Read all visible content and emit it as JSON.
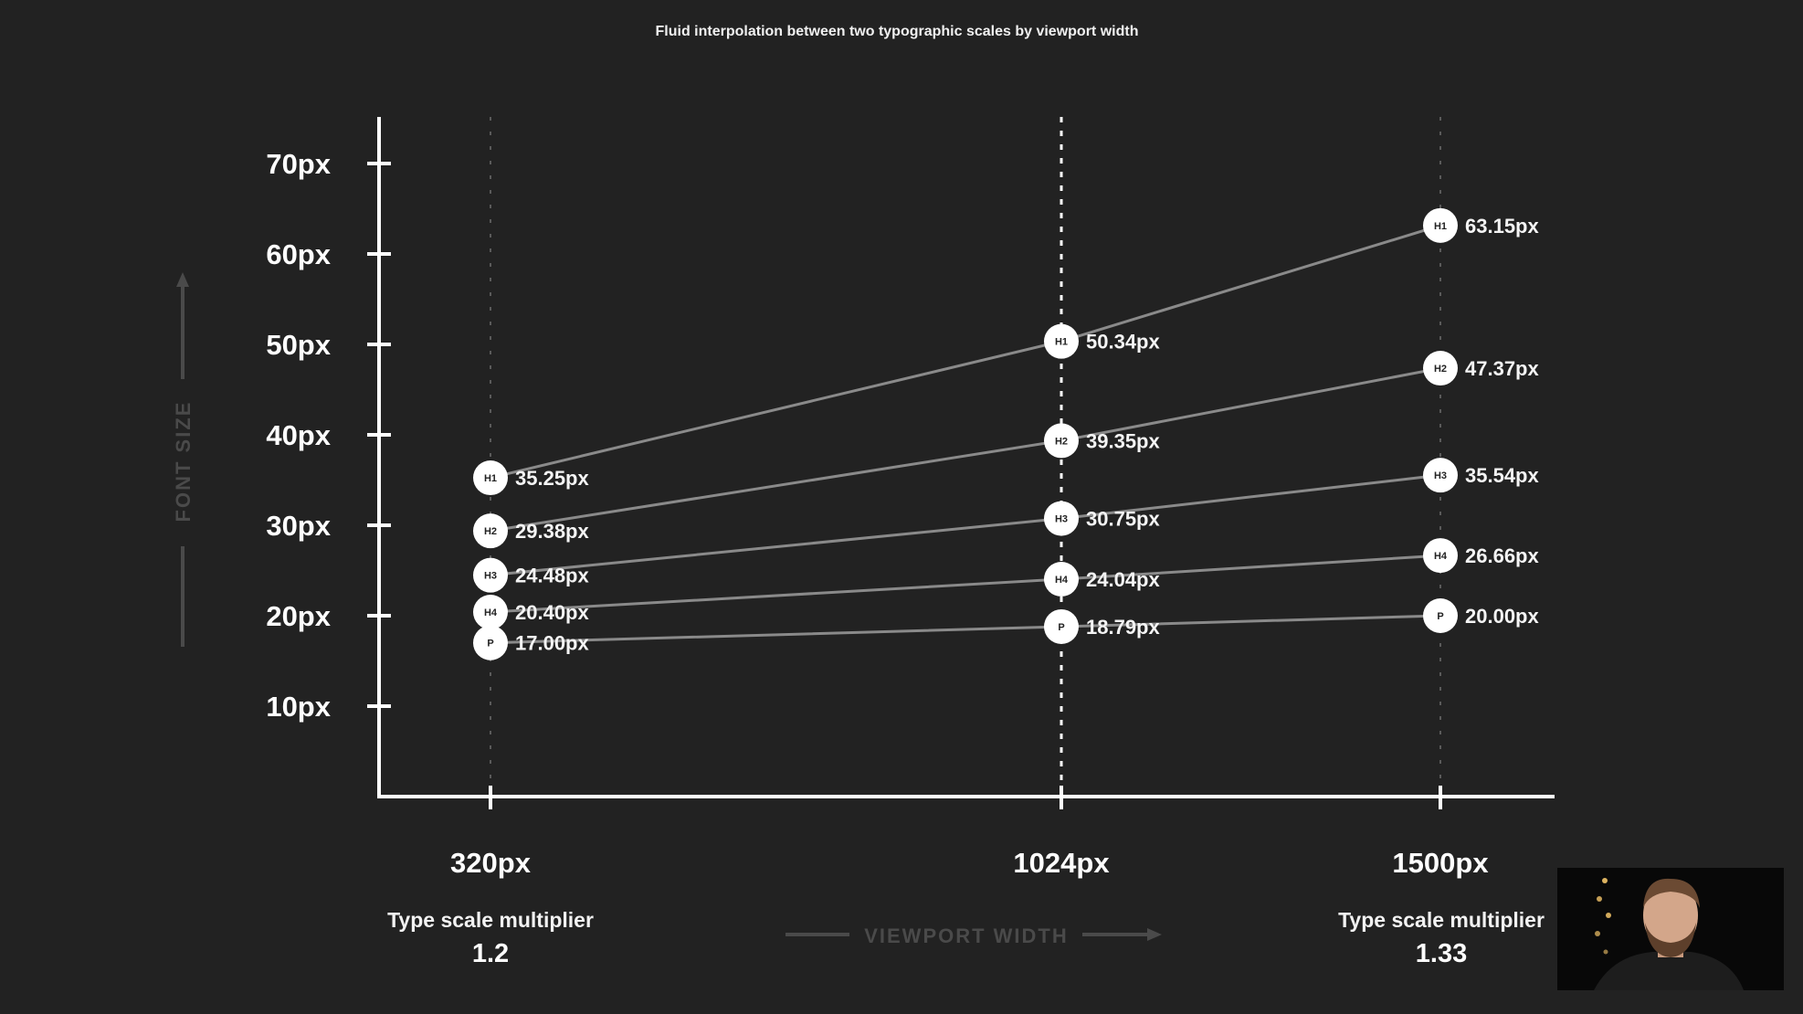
{
  "chart_data": {
    "type": "line",
    "title": "Fluid interpolation between two typographic scales by viewport width",
    "xlabel": "VIEWPORT WIDTH",
    "ylabel": "FONT SIZE",
    "x": [
      320,
      1024,
      1500
    ],
    "x_tick_labels": [
      "320px",
      "1024px",
      "1500px"
    ],
    "y_ticks": [
      10,
      20,
      30,
      40,
      50,
      60,
      70
    ],
    "y_tick_labels": [
      "10px",
      "20px",
      "30px",
      "40px",
      "50px",
      "60px",
      "70px"
    ],
    "ylim": [
      0,
      75
    ],
    "grid": false,
    "series": [
      {
        "name": "H1",
        "values": [
          35.25,
          50.34,
          63.15
        ],
        "labels": [
          "35.25px",
          "50.34px",
          "63.15px"
        ]
      },
      {
        "name": "H2",
        "values": [
          29.38,
          39.35,
          47.37
        ],
        "labels": [
          "29.38px",
          "39.35px",
          "47.37px"
        ]
      },
      {
        "name": "H3",
        "values": [
          24.48,
          30.75,
          35.54
        ],
        "labels": [
          "24.48px",
          "30.75px",
          "35.54px"
        ]
      },
      {
        "name": "H4",
        "values": [
          20.4,
          24.04,
          26.66
        ],
        "labels": [
          "20.40px",
          "24.04px",
          "26.66px"
        ]
      },
      {
        "name": "P",
        "values": [
          17.0,
          18.79,
          20.0
        ],
        "labels": [
          "17.00px",
          "18.79px",
          "20.00px"
        ]
      }
    ],
    "annotations": {
      "left_caption": "Type scale multiplier",
      "left_value": "1.2",
      "right_caption": "Type scale multiplier",
      "right_value": "1.33"
    }
  },
  "colors": {
    "background": "#222222",
    "axis": "#ffffff",
    "line": "#8a8a8a",
    "marker": "#ffffff",
    "muted_text": "#4a4a4a"
  }
}
